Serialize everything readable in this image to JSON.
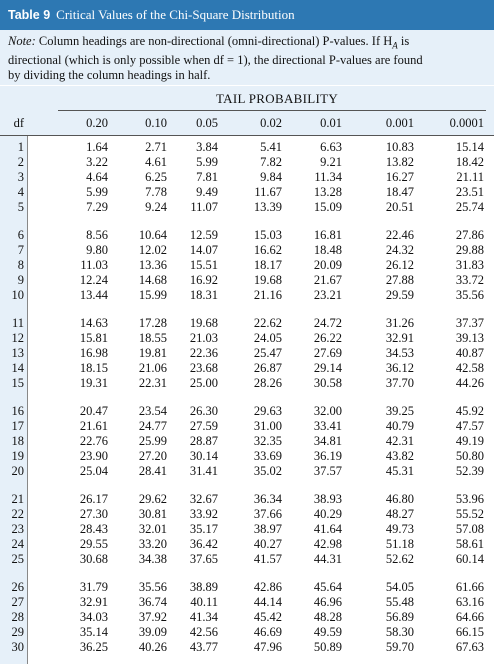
{
  "title": {
    "label": "Table 9",
    "text": "Critical Values of the Chi-Square Distribution"
  },
  "note": {
    "label": "Note:",
    "line1": " Column headings are non-directional (omni-directional) P-values. If H",
    "sub": "A",
    "line1b": " is",
    "line2": "directional (which is only possible when df = 1), the directional P-values are found",
    "line3": "by dividing the column headings in half."
  },
  "table": {
    "super_header": "TAIL PROBABILITY",
    "df_label": "df",
    "columns": [
      "0.20",
      "0.10",
      "0.05",
      "0.02",
      "0.01",
      "0.001",
      "0.0001"
    ],
    "rows": [
      {
        "df": "1",
        "values": [
          "1.64",
          "2.71",
          "3.84",
          "5.41",
          "6.63",
          "10.83",
          "15.14"
        ]
      },
      {
        "df": "2",
        "values": [
          "3.22",
          "4.61",
          "5.99",
          "7.82",
          "9.21",
          "13.82",
          "18.42"
        ]
      },
      {
        "df": "3",
        "values": [
          "4.64",
          "6.25",
          "7.81",
          "9.84",
          "11.34",
          "16.27",
          "21.11"
        ]
      },
      {
        "df": "4",
        "values": [
          "5.99",
          "7.78",
          "9.49",
          "11.67",
          "13.28",
          "18.47",
          "23.51"
        ]
      },
      {
        "df": "5",
        "values": [
          "7.29",
          "9.24",
          "11.07",
          "13.39",
          "15.09",
          "20.51",
          "25.74"
        ]
      },
      {
        "df": "6",
        "values": [
          "8.56",
          "10.64",
          "12.59",
          "15.03",
          "16.81",
          "22.46",
          "27.86"
        ]
      },
      {
        "df": "7",
        "values": [
          "9.80",
          "12.02",
          "14.07",
          "16.62",
          "18.48",
          "24.32",
          "29.88"
        ]
      },
      {
        "df": "8",
        "values": [
          "11.03",
          "13.36",
          "15.51",
          "18.17",
          "20.09",
          "26.12",
          "31.83"
        ]
      },
      {
        "df": "9",
        "values": [
          "12.24",
          "14.68",
          "16.92",
          "19.68",
          "21.67",
          "27.88",
          "33.72"
        ]
      },
      {
        "df": "10",
        "values": [
          "13.44",
          "15.99",
          "18.31",
          "21.16",
          "23.21",
          "29.59",
          "35.56"
        ]
      },
      {
        "df": "11",
        "values": [
          "14.63",
          "17.28",
          "19.68",
          "22.62",
          "24.72",
          "31.26",
          "37.37"
        ]
      },
      {
        "df": "12",
        "values": [
          "15.81",
          "18.55",
          "21.03",
          "24.05",
          "26.22",
          "32.91",
          "39.13"
        ]
      },
      {
        "df": "13",
        "values": [
          "16.98",
          "19.81",
          "22.36",
          "25.47",
          "27.69",
          "34.53",
          "40.87"
        ]
      },
      {
        "df": "14",
        "values": [
          "18.15",
          "21.06",
          "23.68",
          "26.87",
          "29.14",
          "36.12",
          "42.58"
        ]
      },
      {
        "df": "15",
        "values": [
          "19.31",
          "22.31",
          "25.00",
          "28.26",
          "30.58",
          "37.70",
          "44.26"
        ]
      },
      {
        "df": "16",
        "values": [
          "20.47",
          "23.54",
          "26.30",
          "29.63",
          "32.00",
          "39.25",
          "45.92"
        ]
      },
      {
        "df": "17",
        "values": [
          "21.61",
          "24.77",
          "27.59",
          "31.00",
          "33.41",
          "40.79",
          "47.57"
        ]
      },
      {
        "df": "18",
        "values": [
          "22.76",
          "25.99",
          "28.87",
          "32.35",
          "34.81",
          "42.31",
          "49.19"
        ]
      },
      {
        "df": "19",
        "values": [
          "23.90",
          "27.20",
          "30.14",
          "33.69",
          "36.19",
          "43.82",
          "50.80"
        ]
      },
      {
        "df": "20",
        "values": [
          "25.04",
          "28.41",
          "31.41",
          "35.02",
          "37.57",
          "45.31",
          "52.39"
        ]
      },
      {
        "df": "21",
        "values": [
          "26.17",
          "29.62",
          "32.67",
          "36.34",
          "38.93",
          "46.80",
          "53.96"
        ]
      },
      {
        "df": "22",
        "values": [
          "27.30",
          "30.81",
          "33.92",
          "37.66",
          "40.29",
          "48.27",
          "55.52"
        ]
      },
      {
        "df": "23",
        "values": [
          "28.43",
          "32.01",
          "35.17",
          "38.97",
          "41.64",
          "49.73",
          "57.08"
        ]
      },
      {
        "df": "24",
        "values": [
          "29.55",
          "33.20",
          "36.42",
          "40.27",
          "42.98",
          "51.18",
          "58.61"
        ]
      },
      {
        "df": "25",
        "values": [
          "30.68",
          "34.38",
          "37.65",
          "41.57",
          "44.31",
          "52.62",
          "60.14"
        ]
      },
      {
        "df": "26",
        "values": [
          "31.79",
          "35.56",
          "38.89",
          "42.86",
          "45.64",
          "54.05",
          "61.66"
        ]
      },
      {
        "df": "27",
        "values": [
          "32.91",
          "36.74",
          "40.11",
          "44.14",
          "46.96",
          "55.48",
          "63.16"
        ]
      },
      {
        "df": "28",
        "values": [
          "34.03",
          "37.92",
          "41.34",
          "45.42",
          "48.28",
          "56.89",
          "64.66"
        ]
      },
      {
        "df": "29",
        "values": [
          "35.14",
          "39.09",
          "42.56",
          "46.69",
          "49.59",
          "58.30",
          "66.15"
        ]
      },
      {
        "df": "30",
        "values": [
          "36.25",
          "40.26",
          "43.77",
          "47.96",
          "50.89",
          "59.70",
          "67.63"
        ]
      }
    ]
  },
  "colors": {
    "title_bar": "#2d78b3",
    "band": "#e6f0f9"
  }
}
